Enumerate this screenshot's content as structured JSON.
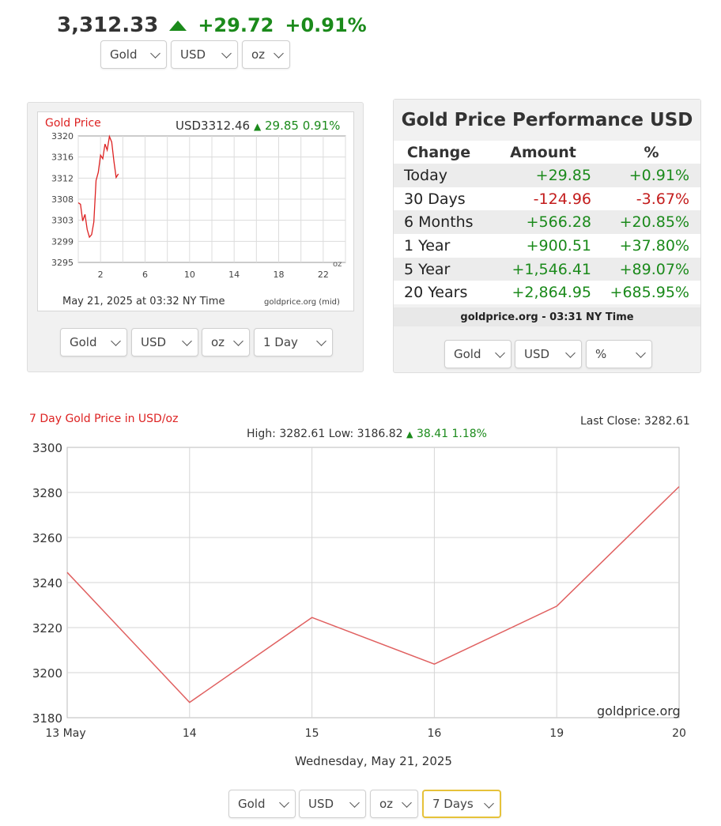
{
  "quote": {
    "price": "3,312.33",
    "change": "+29.72",
    "change_pct": "+0.91%",
    "color_up": "#1b8a1b"
  },
  "top_selects": {
    "metal": "Gold",
    "currency": "USD",
    "unit": "oz"
  },
  "small_chart": {
    "title": "Gold Price",
    "price_label": "USD3312.46",
    "change": "29.85",
    "change_pct": "0.91%",
    "unit_label": "oz",
    "date_label": "May 21, 2025 at 03:32 NY Time",
    "source_label": "goldprice.org (mid)",
    "selects": {
      "metal": "Gold",
      "currency": "USD",
      "unit": "oz",
      "range": "1 Day"
    }
  },
  "performance": {
    "title": "Gold Price Performance USD",
    "headers": [
      "Change",
      "Amount",
      "%"
    ],
    "rows": [
      {
        "period": "Today",
        "amount": "+29.85",
        "pct": "+0.91%",
        "dir": "pos"
      },
      {
        "period": "30 Days",
        "amount": "-124.96",
        "pct": "-3.67%",
        "dir": "neg"
      },
      {
        "period": "6 Months",
        "amount": "+566.28",
        "pct": "+20.85%",
        "dir": "pos"
      },
      {
        "period": "1 Year",
        "amount": "+900.51",
        "pct": "+37.80%",
        "dir": "pos"
      },
      {
        "period": "5 Year",
        "amount": "+1,546.41",
        "pct": "+89.07%",
        "dir": "pos"
      },
      {
        "period": "20 Years",
        "amount": "+2,864.95",
        "pct": "+685.95%",
        "dir": "pos"
      }
    ],
    "footer": "goldprice.org - 03:31 NY Time",
    "selects": {
      "metal": "Gold",
      "currency": "USD",
      "unit": "%"
    }
  },
  "big_chart": {
    "title": "7 Day Gold Price in USD/oz",
    "last_close": "Last Close: 3282.61",
    "stats_prefix": "High: 3282.61 Low: 3186.82",
    "stats_change": "38.41 1.18%",
    "watermark": "goldprice.org",
    "date_label": "Wednesday, May 21, 2025",
    "selects": {
      "metal": "Gold",
      "currency": "USD",
      "unit": "oz",
      "range": "7 Days"
    }
  },
  "chart_data": [
    {
      "type": "line",
      "title": "Gold Price",
      "xlim": [
        0,
        24
      ],
      "ylim": [
        3295,
        3320
      ],
      "yticks": [
        "3320",
        "3316",
        "3312",
        "3308",
        "3303",
        "3299",
        "3295"
      ],
      "xticks": [
        "2",
        "6",
        "10",
        "14",
        "18",
        "22"
      ],
      "xtick_values": [
        2,
        6,
        10,
        14,
        18,
        22
      ],
      "grid": true,
      "line_color": "#dd2222",
      "series": [
        {
          "x": [
            0.0,
            0.2,
            0.4,
            0.6,
            0.8,
            1.0,
            1.2,
            1.4,
            1.6,
            1.8,
            2.0,
            2.2,
            2.4,
            2.6,
            2.8,
            3.0,
            3.2,
            3.4,
            3.6
          ],
          "y": [
            3306.8,
            3306.5,
            3303.2,
            3304.5,
            3301.5,
            3300.0,
            3300.5,
            3303.0,
            3311.2,
            3312.8,
            3316.2,
            3315.5,
            3318.4,
            3317.2,
            3319.9,
            3318.8,
            3315.0,
            3311.8,
            3312.5
          ]
        }
      ]
    },
    {
      "type": "line",
      "title": "7 Day Gold Price in USD/oz",
      "categories": [
        "13 May",
        "14",
        "15",
        "16",
        "19",
        "20"
      ],
      "ylim": [
        3180,
        3300
      ],
      "yticks": [
        "3300",
        "3280",
        "3260",
        "3240",
        "3220",
        "3200",
        "3180"
      ],
      "grid": true,
      "line_color": "#e06060",
      "series": [
        {
          "values": [
            3244.5,
            3186.8,
            3224.5,
            3203.8,
            3229.5,
            3282.6
          ]
        }
      ]
    }
  ]
}
